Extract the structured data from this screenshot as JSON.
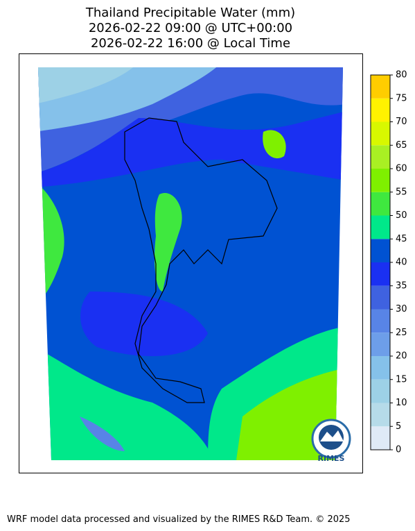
{
  "title": [
    "Thailand Precipitable Water (mm)",
    "2026-02-22 09:00 @ UTC+00:00",
    "2026-02-22 16:00 @ Local Time"
  ],
  "colorbar": {
    "ticks": [
      0,
      5,
      10,
      15,
      20,
      25,
      30,
      35,
      40,
      45,
      50,
      55,
      60,
      65,
      70,
      75,
      80
    ],
    "colors": [
      "#dfeaf7",
      "#b6dbe9",
      "#9dd1e6",
      "#85c1ea",
      "#6d9ee9",
      "#5884e6",
      "#3f62e0",
      "#1a30f2",
      "#0052d2",
      "#00e88a",
      "#3fe83f",
      "#7ff000",
      "#a9f023",
      "#d8f800",
      "#fff200",
      "#ffcd00"
    ]
  },
  "logo": "RIMES",
  "footer": "WRF model data processed and visualized by the RIMES R&D Team. © 2025"
}
